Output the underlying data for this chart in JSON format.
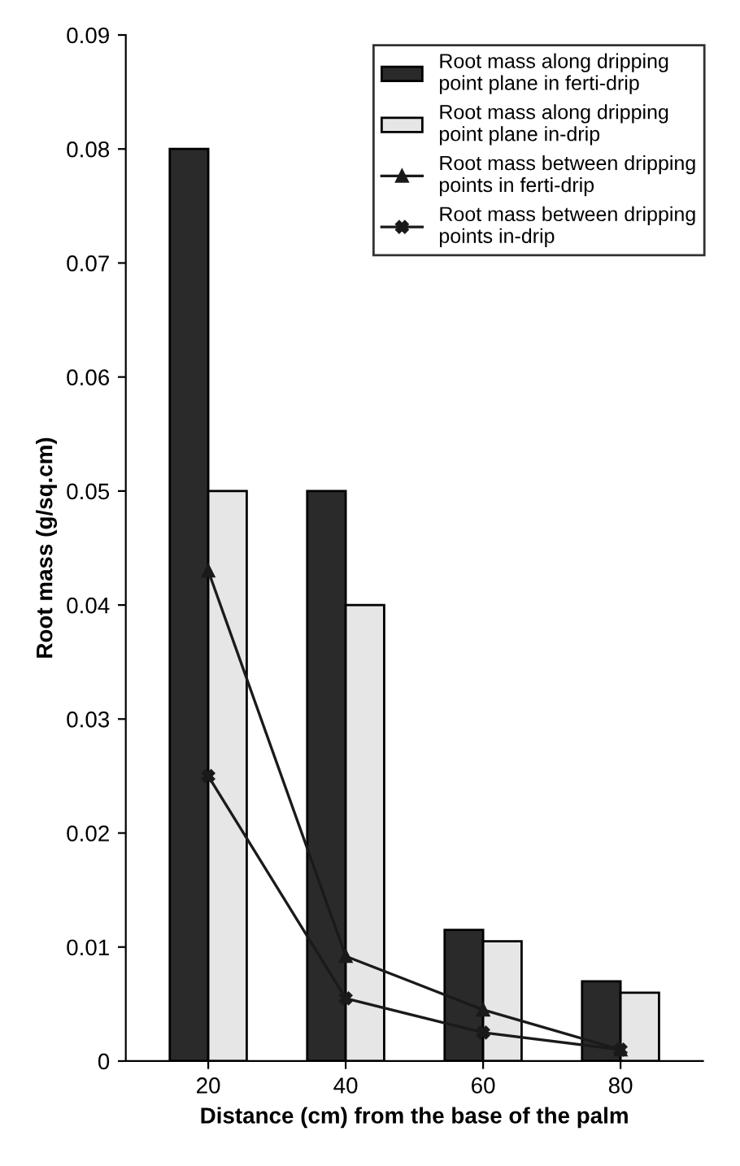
{
  "chart_data": {
    "type": "bar",
    "xlabel": "Distance (cm) from the base of the palm",
    "ylabel": "Root mass (g/sq.cm)",
    "categories": [
      "20",
      "40",
      "60",
      "80"
    ],
    "series": [
      {
        "name": "Root mass along dripping point plane in ferti-drip",
        "color": "#2a2a2a",
        "values": [
          0.08,
          0.05,
          0.0115,
          0.007
        ]
      },
      {
        "name": "Root mass along dripping point plane in-drip",
        "color": "#e6e6e6",
        "values": [
          0.05,
          0.04,
          0.0105,
          0.006
        ]
      },
      {
        "name": "Root mass between dripping points in ferti-drip",
        "type": "line",
        "color": "#1a1a1a",
        "marker": "triangle",
        "values": [
          0.043,
          0.0092,
          0.0045,
          0.001
        ]
      },
      {
        "name": "Root mass between dripping points in-drip",
        "type": "line",
        "color": "#1a1a1a",
        "marker": "cross",
        "values": [
          0.025,
          0.0055,
          0.0025,
          0.001
        ]
      }
    ],
    "ylim": [
      0,
      0.09
    ],
    "yticks": [
      0,
      0.01,
      0.02,
      0.03,
      0.04,
      0.05,
      0.06,
      0.07,
      0.08,
      0.09
    ],
    "grid": false,
    "legend": "top right"
  }
}
